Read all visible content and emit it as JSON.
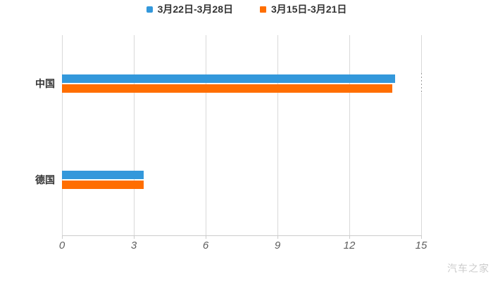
{
  "chart_data": {
    "type": "bar",
    "orientation": "horizontal",
    "title": "",
    "categories": [
      "中国",
      "德国"
    ],
    "series": [
      {
        "name": "3月22日-3月28日",
        "color": "#3398db",
        "values": [
          13.9,
          3.4
        ]
      },
      {
        "name": "3月15日-3月21日",
        "color": "#ff6e00",
        "values": [
          13.8,
          3.4
        ]
      }
    ],
    "xlim": [
      0,
      15
    ],
    "x_ticks": [
      0,
      3,
      6,
      9,
      12,
      15
    ],
    "grid": true,
    "legend_position": "top",
    "gridline_color": "#d9d9d9",
    "axis_color": "#cccccc",
    "label_color": "#333333",
    "tick_label_color": "#5e5e5e"
  },
  "watermark": "汽车之家"
}
